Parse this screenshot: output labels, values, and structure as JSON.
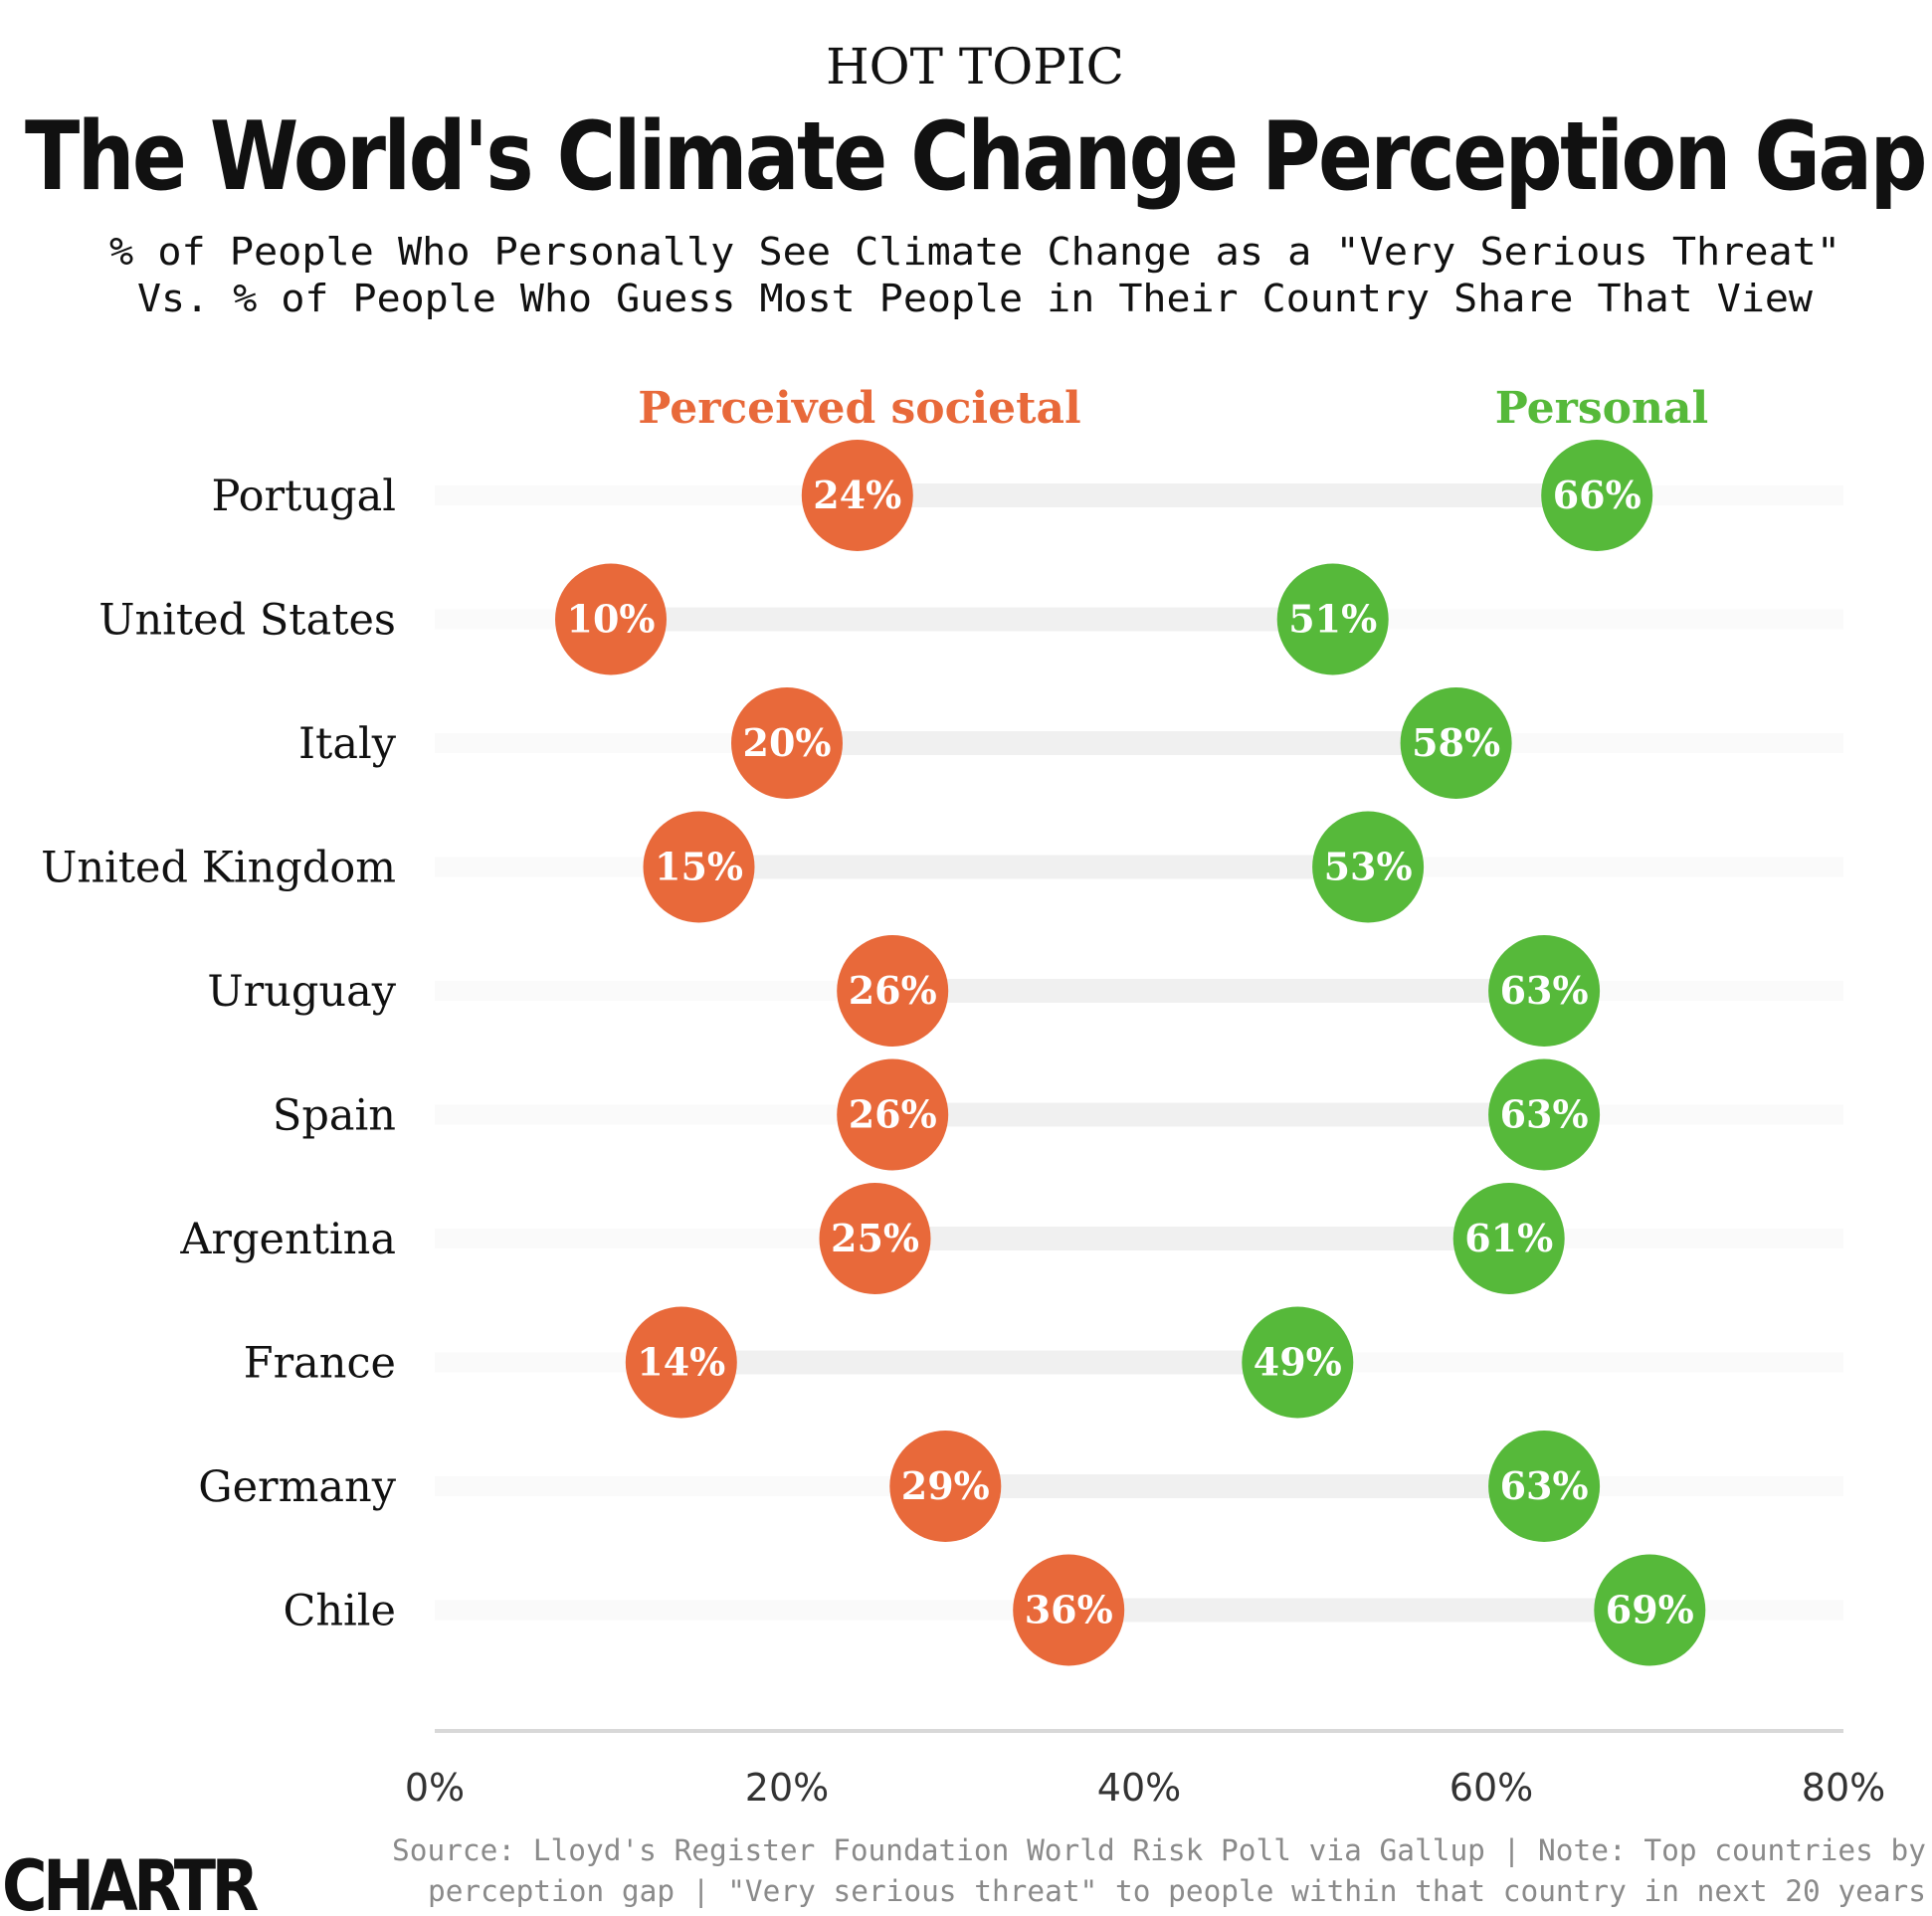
{
  "header": {
    "kicker": "HOT TOPIC",
    "title": "The World's Climate Change Perception Gap",
    "subtitle_line1": "% of People Who Personally See Climate Change as a \"Very Serious Threat\"",
    "subtitle_line2": "Vs. % of People Who Guess Most People in Their Country Share That View"
  },
  "colors": {
    "societal": "#e8693a",
    "personal": "#56b93a",
    "track": "#f0f0f0",
    "axis": "#d8d8d8"
  },
  "chart_data": {
    "type": "dumbbell",
    "title": "The World's Climate Change Perception Gap",
    "xlim": [
      0,
      80
    ],
    "x_ticks": [
      0,
      20,
      40,
      60,
      80
    ],
    "x_tick_labels": [
      "0%",
      "20%",
      "40%",
      "60%",
      "80%"
    ],
    "legend": {
      "placement": "top",
      "entries": [
        "Perceived societal",
        "Personal"
      ]
    },
    "categories": [
      "Portugal",
      "United States",
      "Italy",
      "United Kingdom",
      "Uruguay",
      "Spain",
      "Argentina",
      "France",
      "Germany",
      "Chile"
    ],
    "series": [
      {
        "name": "Perceived societal",
        "values": [
          24,
          10,
          20,
          15,
          26,
          26,
          25,
          14,
          29,
          36
        ],
        "labels": [
          "24%",
          "10%",
          "20%",
          "15%",
          "26%",
          "26%",
          "25%",
          "14%",
          "29%",
          "36%"
        ]
      },
      {
        "name": "Personal",
        "values": [
          66,
          51,
          58,
          53,
          63,
          63,
          61,
          49,
          63,
          69
        ],
        "labels": [
          "66%",
          "51%",
          "58%",
          "53%",
          "63%",
          "63%",
          "61%",
          "49%",
          "63%",
          "69%"
        ]
      }
    ]
  },
  "footer": {
    "source_line1": "Source: Lloyd's Register Foundation World Risk Poll via Gallup | Note: Top countries by",
    "source_line2": "perception gap | \"Very serious threat\" to people within that country in next 20 years",
    "logo": "CHARTR"
  }
}
